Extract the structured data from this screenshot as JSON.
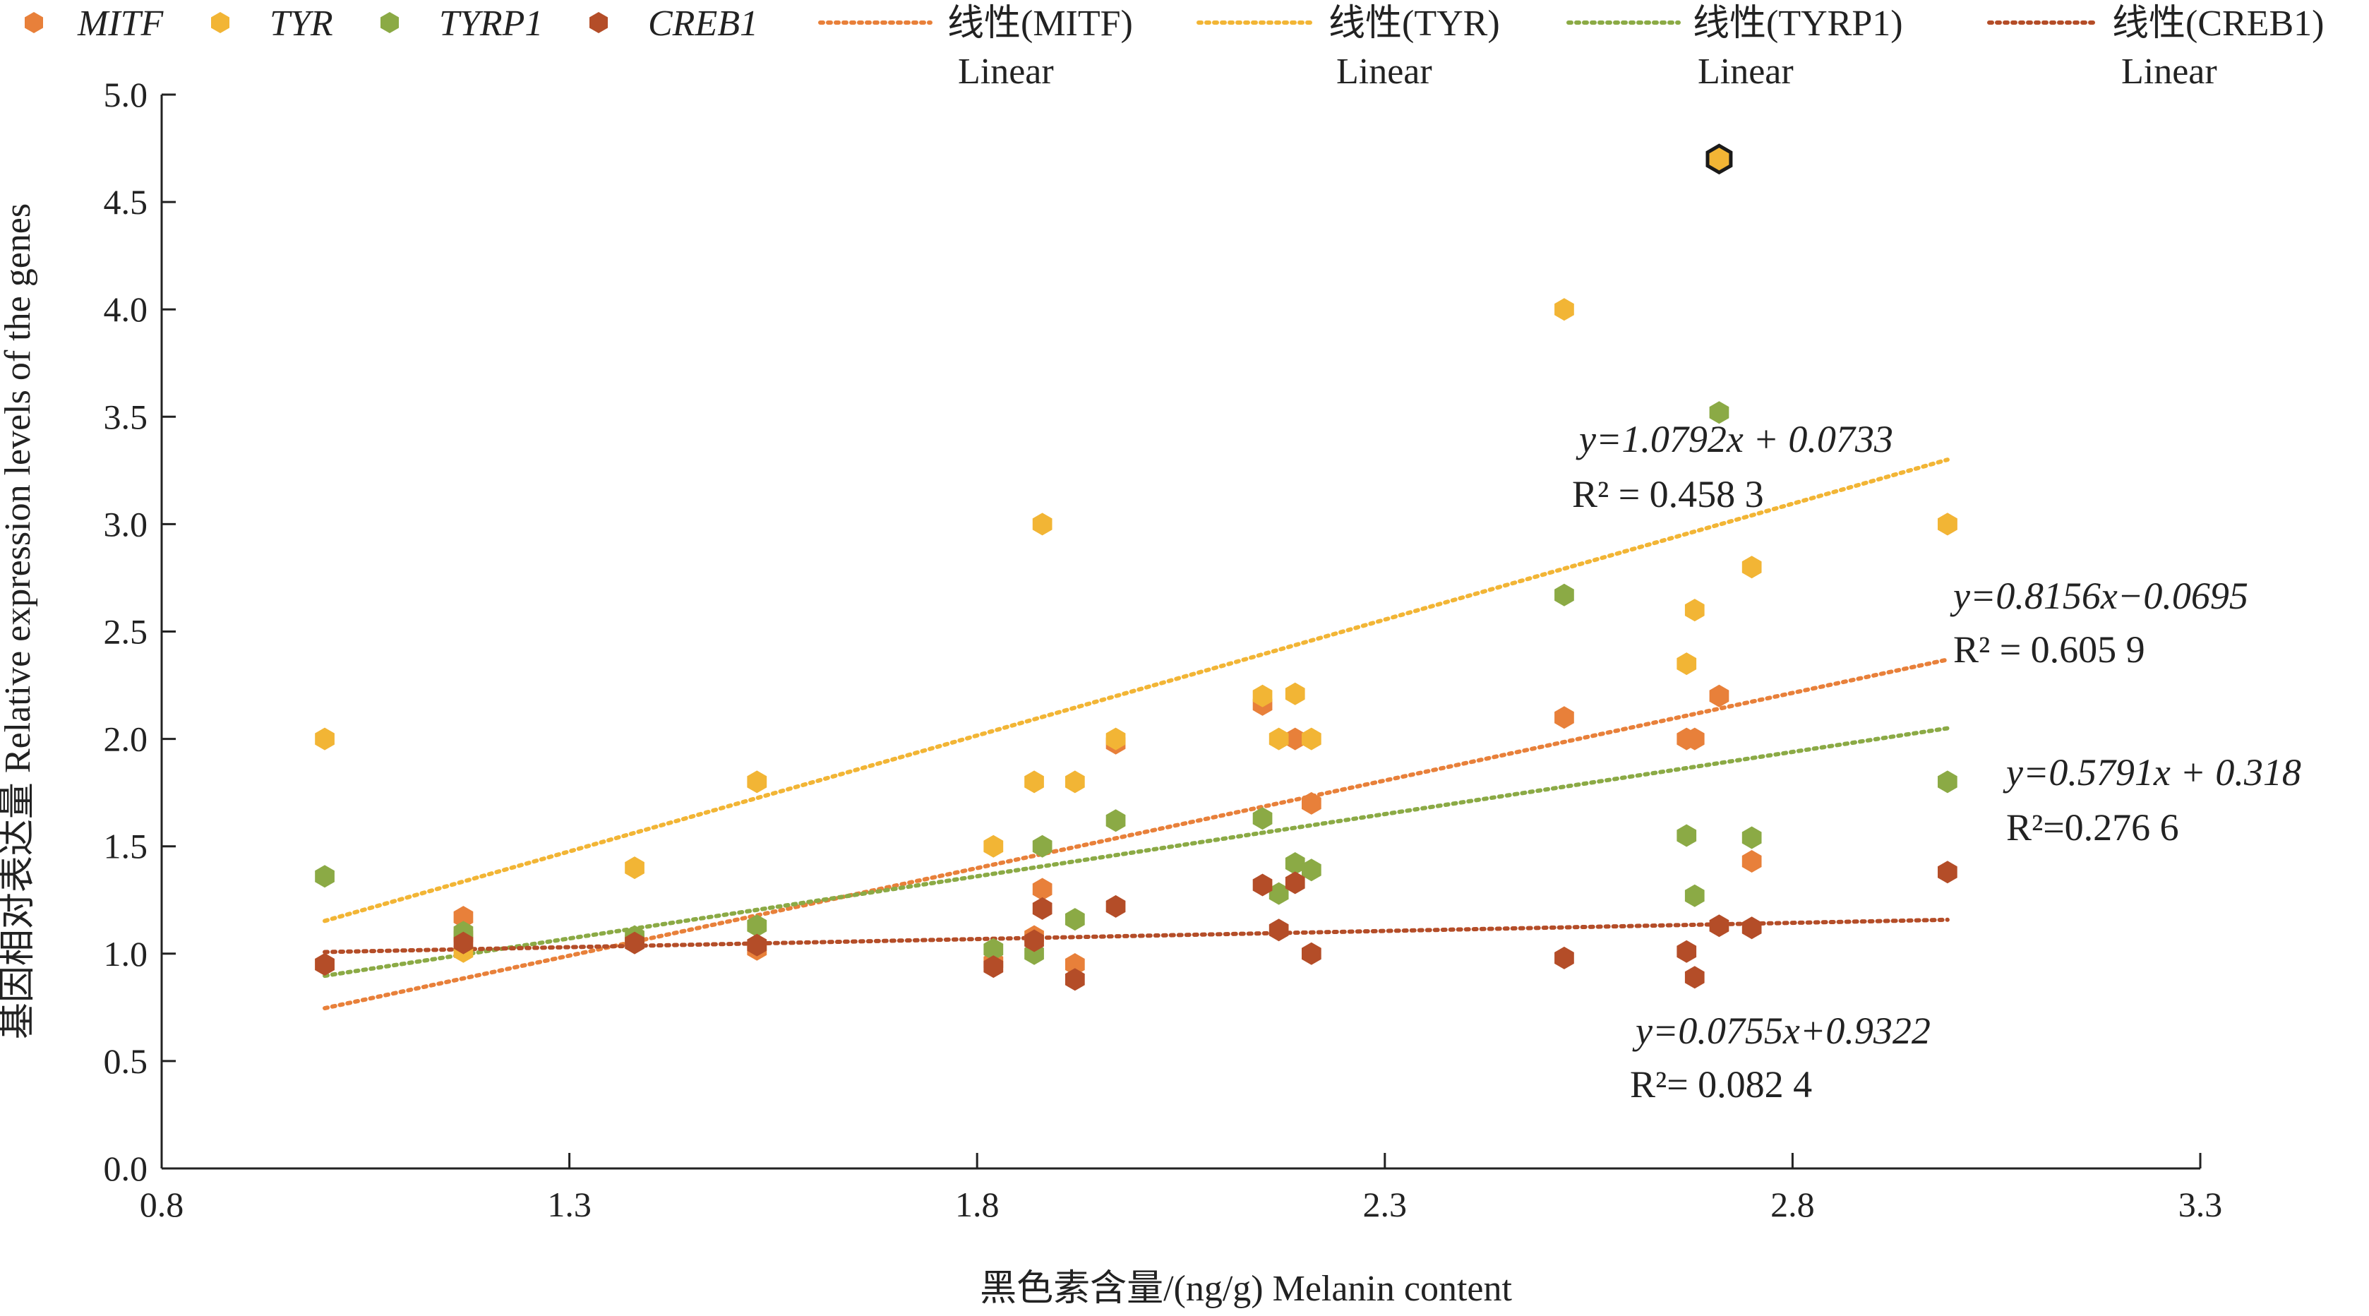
{
  "chart_data": {
    "type": "scatter",
    "xlabel": "黑色素含量/(ng/g)  Melanin content",
    "ylabel": "基因相对表达量 Relative expression levels of the genes",
    "xlim": [
      0.8,
      3.3
    ],
    "ylim": [
      0.0,
      5.0
    ],
    "xticks": [
      "0.8",
      "1.3",
      "1.8",
      "2.3",
      "2.8",
      "3.3"
    ],
    "yticks": [
      "0.0",
      "0.5",
      "1.0",
      "1.5",
      "2.0",
      "2.5",
      "3.0",
      "3.5",
      "4.0",
      "4.5",
      "5.0"
    ],
    "grid": false,
    "legend_position": "top",
    "series": [
      {
        "name": "MITF",
        "color": "#E8803A",
        "points": [
          [
            1.0,
            0.95
          ],
          [
            1.17,
            1.17
          ],
          [
            1.17,
            1.08
          ],
          [
            1.38,
            1.06
          ],
          [
            1.53,
            1.02
          ],
          [
            1.82,
            0.96
          ],
          [
            1.87,
            1.08
          ],
          [
            1.88,
            1.3
          ],
          [
            1.92,
            0.95
          ],
          [
            1.97,
            1.98
          ],
          [
            2.15,
            2.16
          ],
          [
            2.19,
            2.0
          ],
          [
            2.21,
            1.7
          ],
          [
            2.52,
            2.1
          ],
          [
            2.67,
            2.0
          ],
          [
            2.68,
            2.0
          ],
          [
            2.71,
            2.2
          ],
          [
            2.75,
            1.43
          ],
          [
            2.99,
            3.0
          ]
        ],
        "trend": {
          "slope": 0.8156,
          "intercept": -0.0695,
          "label": "线性(MITF)",
          "label2": "Linear",
          "equation": "y=0.8156x−0.0695",
          "r2": "R² = 0.605 9"
        }
      },
      {
        "name": "TYR",
        "color": "#F2B535",
        "points": [
          [
            1.0,
            2.0
          ],
          [
            1.17,
            1.01
          ],
          [
            1.38,
            1.4
          ],
          [
            1.53,
            1.8
          ],
          [
            1.82,
            1.5
          ],
          [
            1.87,
            1.8
          ],
          [
            1.88,
            3.0
          ],
          [
            1.92,
            1.8
          ],
          [
            1.97,
            2.0
          ],
          [
            2.15,
            2.2
          ],
          [
            2.17,
            2.0
          ],
          [
            2.19,
            2.21
          ],
          [
            2.21,
            2.0
          ],
          [
            2.52,
            4.0
          ],
          [
            2.67,
            2.35
          ],
          [
            2.68,
            2.6
          ],
          [
            2.71,
            4.7
          ],
          [
            2.75,
            2.8
          ],
          [
            2.99,
            3.0
          ]
        ],
        "trend": {
          "slope": 1.0792,
          "intercept": 0.0733,
          "label": "线性(TYR)",
          "label2": "Linear",
          "equation": "y=1.0792x + 0.0733",
          "r2": "R² = 0.458 3"
        }
      },
      {
        "name": "TYRP1",
        "color": "#8BAA45",
        "points": [
          [
            1.0,
            1.36
          ],
          [
            1.17,
            1.1
          ],
          [
            1.38,
            1.08
          ],
          [
            1.53,
            1.13
          ],
          [
            1.82,
            1.02
          ],
          [
            1.87,
            1.0
          ],
          [
            1.88,
            1.5
          ],
          [
            1.92,
            1.16
          ],
          [
            1.97,
            1.62
          ],
          [
            2.15,
            1.63
          ],
          [
            2.17,
            1.28
          ],
          [
            2.19,
            1.42
          ],
          [
            2.21,
            1.39
          ],
          [
            2.52,
            2.67
          ],
          [
            2.67,
            1.55
          ],
          [
            2.68,
            1.27
          ],
          [
            2.71,
            3.52
          ],
          [
            2.75,
            1.54
          ],
          [
            2.99,
            1.8
          ]
        ],
        "trend": {
          "slope": 0.5791,
          "intercept": 0.318,
          "label": "线性(TYRP1)",
          "label2": "Linear",
          "equation": "y=0.5791x + 0.318",
          "r2": "R²=0.276 6"
        }
      },
      {
        "name": "CREB1",
        "color": "#B44D28",
        "points": [
          [
            1.0,
            0.95
          ],
          [
            1.17,
            1.05
          ],
          [
            1.38,
            1.05
          ],
          [
            1.53,
            1.04
          ],
          [
            1.82,
            0.94
          ],
          [
            1.87,
            1.06
          ],
          [
            1.88,
            1.21
          ],
          [
            1.92,
            0.88
          ],
          [
            1.97,
            1.22
          ],
          [
            2.15,
            1.32
          ],
          [
            2.17,
            1.11
          ],
          [
            2.19,
            1.33
          ],
          [
            2.21,
            1.0
          ],
          [
            2.52,
            0.98
          ],
          [
            2.67,
            1.01
          ],
          [
            2.68,
            0.89
          ],
          [
            2.71,
            1.13
          ],
          [
            2.75,
            1.12
          ],
          [
            2.99,
            1.38
          ]
        ],
        "trend": {
          "slope": 0.0755,
          "intercept": 0.9322,
          "label": "线性(CREB1)",
          "label2": "Linear",
          "equation": "y=0.0755x+0.9322",
          "r2": "R²= 0.082 4"
        }
      }
    ],
    "trend_range": [
      1.0,
      2.99
    ],
    "highlighted_point": {
      "series": "TYR",
      "x": 2.71,
      "y": 4.7
    }
  }
}
